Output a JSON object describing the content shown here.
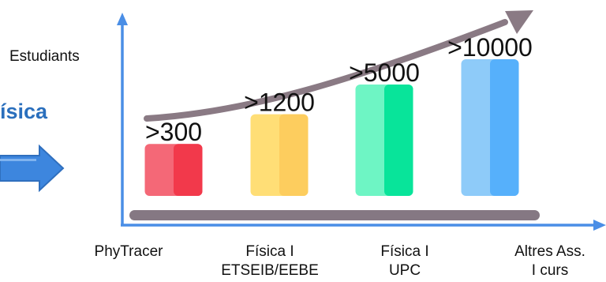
{
  "side_heading": "ísica",
  "chart_data": {
    "type": "bar",
    "categories": [
      "PhyTracer",
      "Física I ETSEIB/EEBE",
      "Física I UPC",
      "Altres Ass. I curs"
    ],
    "category_lines": [
      [
        "PhyTracer"
      ],
      [
        "Física I",
        "ETSEIB/EEBE"
      ],
      [
        "Física I",
        "UPC"
      ],
      [
        "Altres Ass.",
        "I curs"
      ]
    ],
    "values": [
      300,
      1200,
      5000,
      10000
    ],
    "value_labels": [
      ">300",
      ">1200",
      ">5000",
      ">10000"
    ],
    "relative_heights": [
      0.35,
      0.55,
      0.75,
      0.92
    ],
    "ylabel": "Estudiants",
    "bar_colors": [
      [
        "#f46877",
        "#f2394b"
      ],
      [
        "#ffde76",
        "#fdcd5e"
      ],
      [
        "#6ef5c4",
        "#08e49a"
      ],
      [
        "#8ecbf9",
        "#56b0fb"
      ]
    ],
    "axis_color": "#4a8ee6",
    "arrow_color": "#8a7a84",
    "base_bar_color": "#857883",
    "side_arrow_color": "#3d86de",
    "grid": false,
    "legend": "none"
  }
}
